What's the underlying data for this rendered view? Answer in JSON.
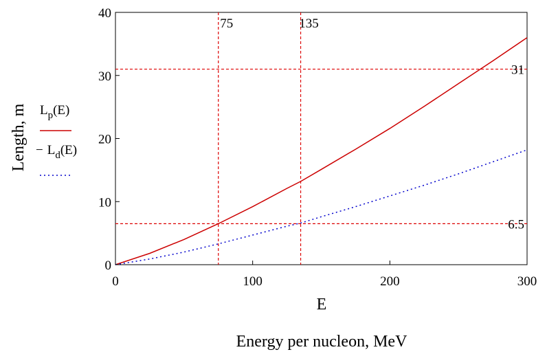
{
  "chart_data": {
    "type": "line",
    "xlabel": "E",
    "x_caption": "Energy per nucleon, MeV",
    "ylabel": "Length, m",
    "xlim": [
      0,
      300
    ],
    "ylim": [
      0,
      40
    ],
    "x_ticks": [
      "0",
      "100",
      "200",
      "300"
    ],
    "y_ticks": [
      "0",
      "10",
      "20",
      "30",
      "40"
    ],
    "grid": false,
    "legend_position": "left, outside plot",
    "series": [
      {
        "name": "L_p(E)",
        "name_main": "L",
        "name_sub": "p",
        "name_arg": "(E)",
        "color": "#cc0000",
        "style": "solid",
        "x": [
          0,
          25,
          50,
          75,
          100,
          125,
          135,
          150,
          175,
          200,
          225,
          250,
          275,
          300
        ],
        "y": [
          0,
          1.8,
          4.0,
          6.5,
          9.2,
          12.1,
          13.2,
          15.1,
          18.3,
          21.6,
          25.1,
          28.7,
          32.3,
          36.0
        ]
      },
      {
        "name": "L_d(E)",
        "name_main": "L",
        "name_sub": "d",
        "name_arg": "(E)",
        "legend_prefix": "−",
        "color": "#0000cc",
        "style": "dotted",
        "x": [
          0,
          25,
          50,
          75,
          100,
          125,
          135,
          150,
          175,
          200,
          225,
          250,
          275,
          300
        ],
        "y": [
          0,
          0.9,
          2.0,
          3.3,
          4.7,
          6.1,
          6.6,
          7.6,
          9.2,
          10.9,
          12.6,
          14.4,
          16.3,
          18.2
        ]
      }
    ],
    "markers": {
      "color": "#dd0000",
      "vertical": [
        {
          "x": 75,
          "label": "75"
        },
        {
          "x": 135,
          "label": "135"
        }
      ],
      "horizontal": [
        {
          "y": 31,
          "label": "31"
        },
        {
          "y": 6.5,
          "label": "6.5"
        }
      ]
    }
  }
}
